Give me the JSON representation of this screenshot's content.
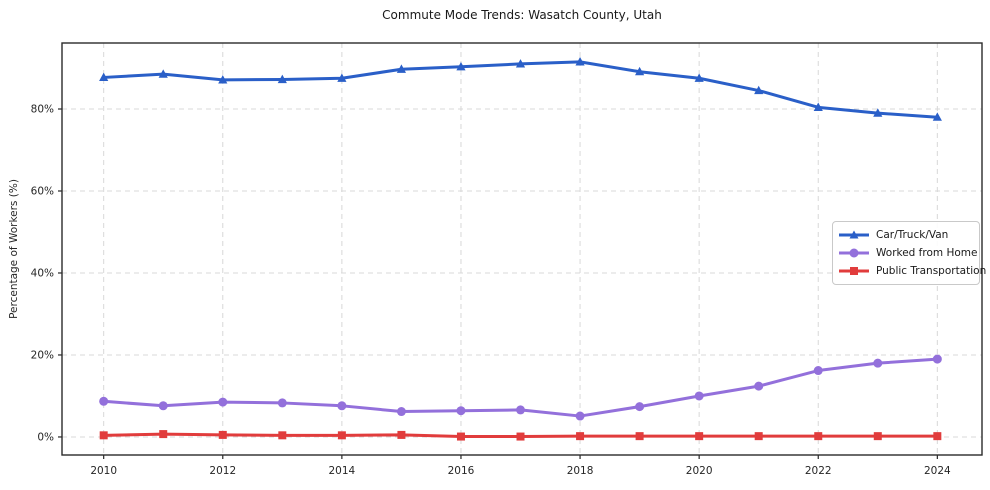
{
  "title": "Commute Mode Trends: Wasatch County, Utah",
  "chart_data": {
    "type": "line",
    "title": "Commute Mode Trends: Wasatch County, Utah",
    "xlabel": "",
    "ylabel": "Percentage of Workers (%)",
    "x": [
      2010,
      2011,
      2012,
      2013,
      2014,
      2015,
      2016,
      2017,
      2018,
      2019,
      2020,
      2021,
      2022,
      2023,
      2024
    ],
    "series": [
      {
        "name": "Car/Truck/Van",
        "color": "#2a5fc8",
        "marker": "triangle",
        "values": [
          87.7,
          88.5,
          87.1,
          87.2,
          87.5,
          89.7,
          90.3,
          91.0,
          91.5,
          89.1,
          87.5,
          84.5,
          80.4,
          79.0,
          78.0
        ]
      },
      {
        "name": "Worked from Home",
        "color": "#9370db",
        "marker": "circle",
        "values": [
          8.7,
          7.6,
          8.5,
          8.3,
          7.6,
          6.2,
          6.4,
          6.6,
          5.1,
          7.4,
          10.0,
          12.4,
          16.2,
          18.0,
          19.0
        ]
      },
      {
        "name": "Public Transportation",
        "color": "#e13c3c",
        "marker": "square",
        "values": [
          0.4,
          0.7,
          0.5,
          0.4,
          0.4,
          0.5,
          0.1,
          0.1,
          0.2,
          0.2,
          0.2,
          0.2,
          0.2,
          0.2,
          0.2
        ]
      }
    ],
    "xticks": [
      2010,
      2012,
      2014,
      2016,
      2018,
      2020,
      2022,
      2024
    ],
    "xtick_labels": [
      "2010",
      "2012",
      "2014",
      "2016",
      "2018",
      "2020",
      "2022",
      "2024"
    ],
    "yticks": [
      0,
      20,
      40,
      60,
      80
    ],
    "ytick_labels": [
      "0%",
      "20%",
      "40%",
      "60%",
      "80%"
    ],
    "xlim": [
      2009.3,
      2024.75
    ],
    "ylim": [
      -4.4,
      96.1
    ],
    "grid": true,
    "grid_style": "dashed",
    "legend_position": "center-right",
    "colors": {
      "grid": "#d8d8d8",
      "spine": "#2b2b2b",
      "tick_text": "#262626",
      "background": "#ffffff"
    }
  }
}
